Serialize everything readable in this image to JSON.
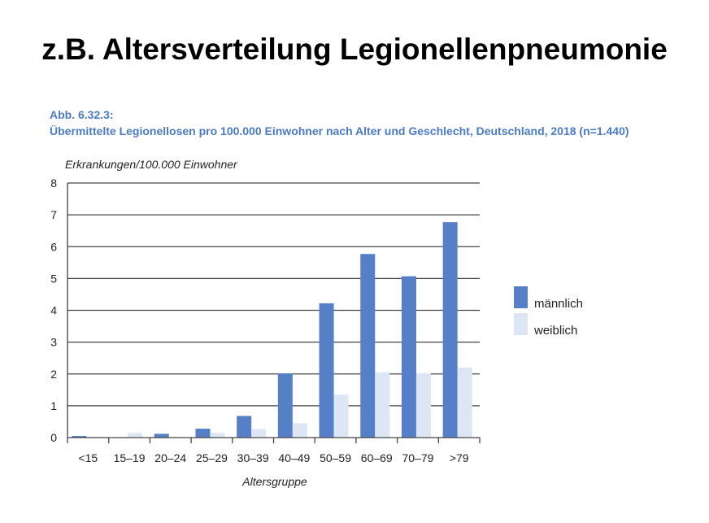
{
  "slide_title": "z.B. Altersverteilung Legionellenpneumonie",
  "figure_number": "Abb. 6.32.3:",
  "figure_caption": "Übermittelte Legionellosen pro 100.000 Einwohner nach Alter und Geschlecht, Deutschland, 2018 (n=1.440)",
  "chart_data": {
    "type": "bar",
    "ylabel": "Erkrankungen/100.000 Einwohner",
    "xlabel": "Altersgruppe",
    "ylim": [
      0,
      8
    ],
    "yticks": [
      0,
      1,
      2,
      3,
      4,
      5,
      6,
      7,
      8
    ],
    "grid": true,
    "legend_position": "right",
    "categories": [
      "<15",
      "15–19",
      "20–24",
      "25–29",
      "30–39",
      "40–49",
      "50–59",
      "60–69",
      "70–79",
      ">79"
    ],
    "series": [
      {
        "name": "männlich",
        "color": "#5580c8",
        "values": [
          0.05,
          0,
          0.12,
          0.28,
          0.68,
          2.02,
          4.22,
          5.77,
          5.07,
          6.77
        ]
      },
      {
        "name": "weiblich",
        "color": "#dce6f4",
        "values": [
          0.02,
          0.15,
          0.02,
          0.15,
          0.27,
          0.45,
          1.35,
          2.05,
          2.02,
          2.2
        ]
      }
    ]
  }
}
